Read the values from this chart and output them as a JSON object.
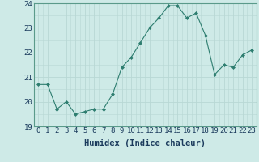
{
  "x": [
    0,
    1,
    2,
    3,
    4,
    5,
    6,
    7,
    8,
    9,
    10,
    11,
    12,
    13,
    14,
    15,
    16,
    17,
    18,
    19,
    20,
    21,
    22,
    23
  ],
  "y": [
    20.7,
    20.7,
    19.7,
    20.0,
    19.5,
    19.6,
    19.7,
    19.7,
    20.3,
    21.4,
    21.8,
    22.4,
    23.0,
    23.4,
    23.9,
    23.9,
    23.4,
    23.6,
    22.7,
    21.1,
    21.5,
    21.4,
    21.9,
    22.1
  ],
  "line_color": "#2d7d6f",
  "marker_color": "#2d7d6f",
  "bg_color": "#ceeae7",
  "grid_color": "#b8d8d4",
  "xlabel": "Humidex (Indice chaleur)",
  "ylim": [
    19,
    24
  ],
  "xlim": [
    -0.5,
    23.5
  ],
  "yticks": [
    19,
    20,
    21,
    22,
    23,
    24
  ],
  "xticks": [
    0,
    1,
    2,
    3,
    4,
    5,
    6,
    7,
    8,
    9,
    10,
    11,
    12,
    13,
    14,
    15,
    16,
    17,
    18,
    19,
    20,
    21,
    22,
    23
  ],
  "tick_fontsize": 6.5,
  "label_fontsize": 7.5,
  "label_color": "#1a3a5c",
  "tick_color": "#1a3a5c",
  "spine_color": "#5a9a8a"
}
